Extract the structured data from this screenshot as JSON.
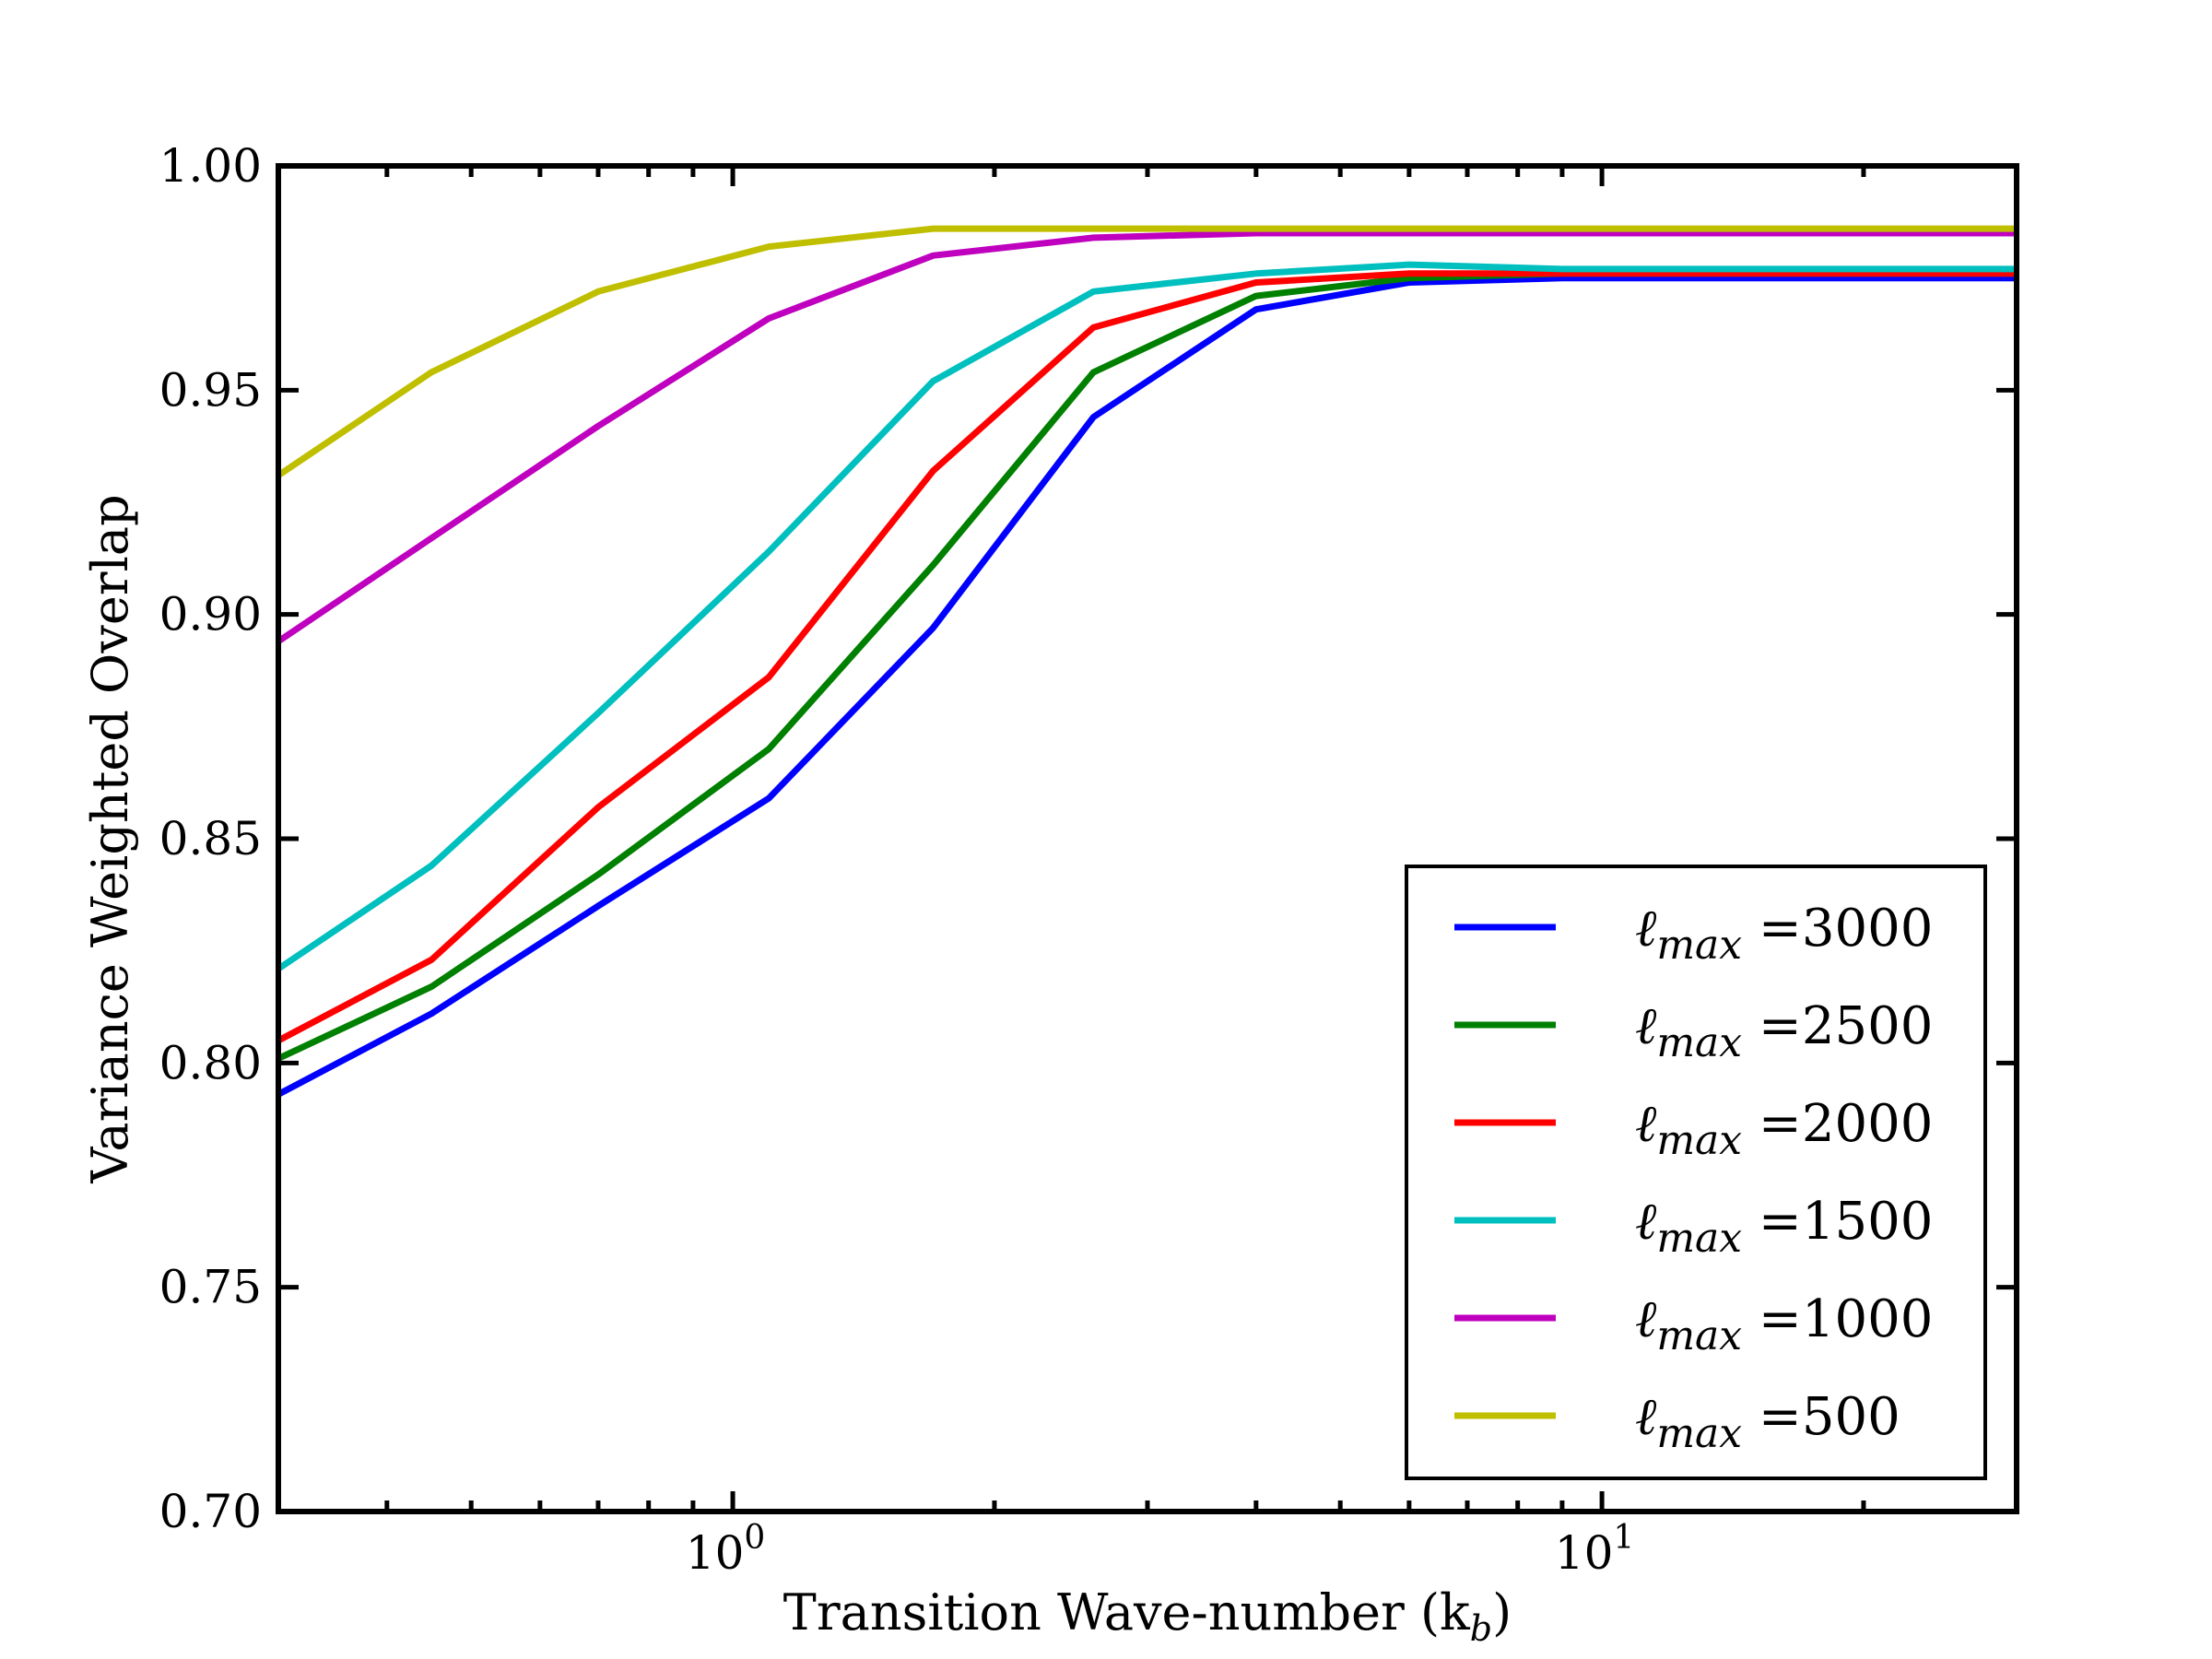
{
  "chart_data": {
    "type": "line",
    "title": "",
    "xlabel": "Transition Wave-number (k",
    "xlabel_sub": "b",
    "xlabel_close": ")",
    "ylabel": "Variance Weighted Overlap",
    "xscale": "log",
    "xlim": [
      0.3,
      30
    ],
    "ylim": [
      0.7,
      1.0
    ],
    "grid": false,
    "legend_position": "lower-right",
    "ytick_labels": [
      "0.70",
      "0.75",
      "0.80",
      "0.85",
      "0.90",
      "0.95",
      "1.00"
    ],
    "ytick_values": [
      0.7,
      0.75,
      0.8,
      0.85,
      0.9,
      0.95,
      1.0
    ],
    "xtick_labels": [
      {
        "base": "10",
        "exp": "0",
        "value": 1
      },
      {
        "base": "10",
        "exp": "1",
        "value": 10
      }
    ],
    "x": [
      0.3,
      0.45,
      0.7,
      1.1,
      1.7,
      2.6,
      4.0,
      6.0,
      9.0,
      13.5,
      20,
      30
    ],
    "series": [
      {
        "name": "ℓmax =3000",
        "prefix": "ℓ",
        "sub": "max",
        "value_text": " =3000",
        "color": "#0000ff",
        "values": [
          0.793,
          0.811,
          0.835,
          0.859,
          0.897,
          0.944,
          0.968,
          0.974,
          0.975,
          0.975,
          0.975,
          0.975
        ]
      },
      {
        "name": "ℓmax =2500",
        "prefix": "ℓ",
        "sub": "max",
        "value_text": " =2500",
        "color": "#008000",
        "values": [
          0.801,
          0.817,
          0.842,
          0.87,
          0.911,
          0.954,
          0.971,
          0.975,
          0.976,
          0.976,
          0.976,
          0.976
        ]
      },
      {
        "name": "ℓmax =2000",
        "prefix": "ℓ",
        "sub": "max",
        "value_text": " =2000",
        "color": "#ff0000",
        "values": [
          0.805,
          0.823,
          0.857,
          0.886,
          0.932,
          0.964,
          0.974,
          0.976,
          0.976,
          0.976,
          0.976,
          0.976
        ]
      },
      {
        "name": "ℓmax =1500",
        "prefix": "ℓ",
        "sub": "max",
        "value_text": " =1500",
        "color": "#00bfbf",
        "values": [
          0.821,
          0.844,
          0.878,
          0.914,
          0.952,
          0.972,
          0.976,
          0.978,
          0.977,
          0.977,
          0.977,
          0.977
        ]
      },
      {
        "name": "ℓmax =1000",
        "prefix": "ℓ",
        "sub": "max",
        "value_text": " =1000",
        "color": "#bf00bf",
        "values": [
          0.894,
          0.917,
          0.942,
          0.966,
          0.98,
          0.984,
          0.985,
          0.985,
          0.985,
          0.985,
          0.985,
          0.985
        ]
      },
      {
        "name": "ℓmax =500",
        "prefix": "ℓ",
        "sub": "max",
        "value_text": " =500",
        "color": "#bfbf00",
        "values": [
          0.931,
          0.954,
          0.972,
          0.982,
          0.986,
          0.986,
          0.986,
          0.986,
          0.986,
          0.986,
          0.986,
          0.986
        ]
      }
    ]
  }
}
